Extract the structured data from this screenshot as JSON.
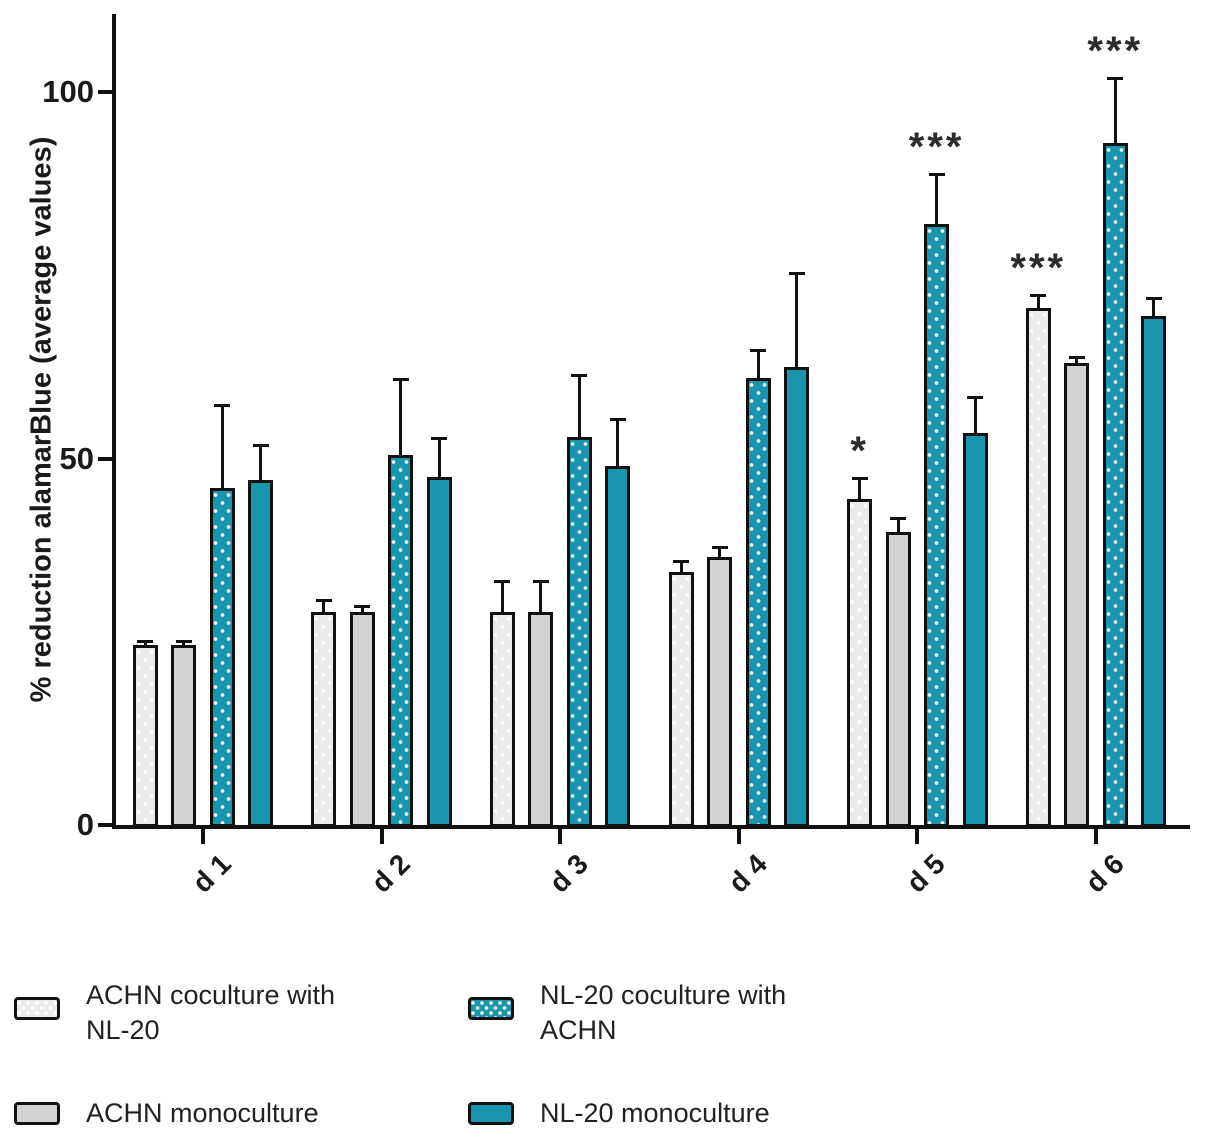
{
  "figure_type": "grouped-bar-chart",
  "colors": {
    "teal": "#1b95ae",
    "gray": "#d3d3d3",
    "gray_light": "#ebebeb",
    "axis_and_outline": "#111111",
    "dot_pattern": "#ffffff",
    "background": "#ffffff"
  },
  "chart_data": {
    "type": "bar",
    "title": "",
    "xlabel": "",
    "ylabel": "% reduction alamarBlue (average values)",
    "ylim": [
      0,
      110
    ],
    "yticks": [
      "0",
      "50",
      "100"
    ],
    "ytick_values": [
      0,
      50,
      100
    ],
    "grid": "off",
    "legend_position": "bottom",
    "categories": [
      "d 1",
      "d 2",
      "d 3",
      "d 4",
      "d 5",
      "d 6"
    ],
    "series": [
      {
        "name": "ACHN coculture with NL-20",
        "style": "gray-dotted",
        "values": [
          24.5,
          29,
          29,
          34.5,
          44.5,
          70.5
        ],
        "errors_upper": [
          0.7,
          1.8,
          4.4,
          1.6,
          3,
          2
        ],
        "significance": [
          "",
          "",
          "",
          "",
          "*",
          "***"
        ]
      },
      {
        "name": "ACHN monoculture",
        "style": "gray-solid",
        "values": [
          24.5,
          29,
          29,
          36.5,
          40,
          63
        ],
        "errors_upper": [
          0.7,
          1,
          4.4,
          1.5,
          2,
          1
        ],
        "significance": [
          "",
          "",
          "",
          "",
          "",
          ""
        ]
      },
      {
        "name": "NL-20 coculture with ACHN",
        "style": "teal-dotted",
        "values": [
          46,
          50.5,
          53,
          61,
          82,
          93
        ],
        "errors_upper": [
          11.5,
          10.5,
          8.5,
          4,
          7,
          9
        ],
        "significance": [
          "",
          "",
          "",
          "",
          "***",
          "***"
        ]
      },
      {
        "name": "NL-20 monoculture",
        "style": "teal-solid",
        "values": [
          47,
          47.5,
          49,
          62.5,
          53.5,
          69.5
        ],
        "errors_upper": [
          5,
          5.5,
          6.5,
          13,
          5,
          2.5
        ],
        "significance": [
          "",
          "",
          "",
          "",
          "",
          ""
        ]
      }
    ]
  },
  "legend": {
    "items": [
      {
        "swatch": "gray-dotted",
        "line1": "ACHN coculture with",
        "line2": "NL-20"
      },
      {
        "swatch": "teal-dotted",
        "line1": "NL-20 coculture with",
        "line2": "ACHN"
      },
      {
        "swatch": "gray-solid",
        "line1": "ACHN monoculture",
        "line2": ""
      },
      {
        "swatch": "teal-solid",
        "line1": "NL-20 monoculture",
        "line2": ""
      }
    ]
  }
}
